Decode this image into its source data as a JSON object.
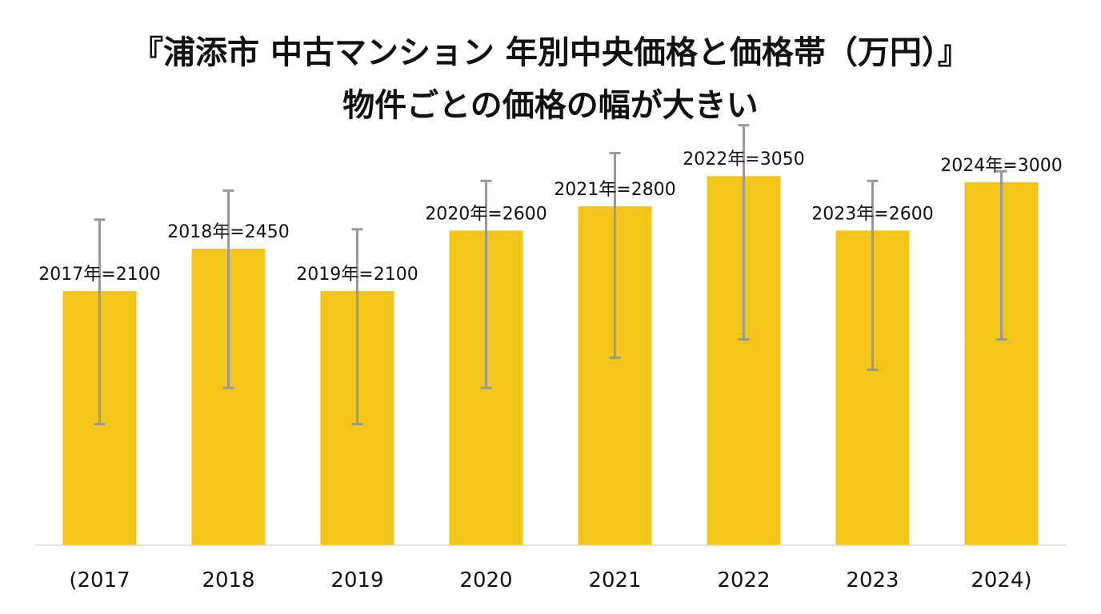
{
  "chart_data": {
    "type": "bar",
    "title": "『浦添市 中古マンション 年別中央価格と価格帯（万円）』",
    "subtitle": "物件ごとの価格の幅が大きい",
    "categories": [
      "(2017",
      "2018",
      "2019",
      "2020",
      "2021",
      "2022",
      "2023",
      "2024)"
    ],
    "values": [
      2100,
      2450,
      2100,
      2600,
      2800,
      3050,
      2600,
      3000
    ],
    "data_labels": [
      "2017年=2100",
      "2018年=2450",
      "2019年=2100",
      "2020年=2600",
      "2021年=2800",
      "2022年=3050",
      "2023年=2600",
      "2024年=3000"
    ],
    "error_low": [
      1000,
      1300,
      1000,
      1300,
      1550,
      1700,
      1450,
      1700
    ],
    "error_high": [
      2690,
      2930,
      2610,
      3010,
      3240,
      3470,
      3010,
      3090
    ],
    "ylim": [
      0,
      3500
    ],
    "xlabel": "",
    "ylabel": "",
    "grid": false,
    "legend": "none",
    "bar_color": "#F2C618",
    "error_bar_color": "#999999"
  }
}
